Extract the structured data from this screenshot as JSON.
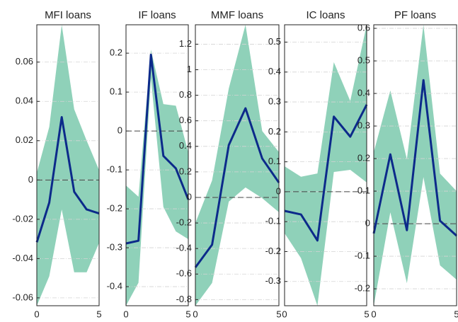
{
  "chart_data": [
    {
      "type": "band-line",
      "title": "MFI loans",
      "x": [
        0,
        1,
        2,
        3,
        4,
        5
      ],
      "values": [
        -0.0317,
        -0.0115,
        0.032,
        -0.006,
        -0.015,
        -0.017
      ],
      "upper": [
        0.0036,
        0.027,
        0.079,
        0.036,
        0.02,
        0.005
      ],
      "lower": [
        -0.064,
        -0.049,
        -0.015,
        -0.047,
        -0.047,
        -0.032
      ],
      "color": "#0c2a8a",
      "band_color": "#8fd1b9",
      "xlim": [
        0,
        5
      ],
      "xticks": [
        0,
        5
      ],
      "ylim": [
        -0.064,
        0.079
      ],
      "yticks": [
        -0.06,
        -0.04,
        -0.02,
        0,
        0.02,
        0.04,
        0.06
      ],
      "grid": true,
      "zero_line": true
    },
    {
      "type": "band-line",
      "title": "IF loans",
      "x": [
        0,
        1,
        2,
        3,
        4,
        5
      ],
      "values": [
        -0.289,
        -0.282,
        0.196,
        -0.064,
        -0.096,
        -0.176
      ],
      "upper": [
        -0.14,
        -0.169,
        0.209,
        0.069,
        0.065,
        -0.055
      ],
      "lower": [
        -0.449,
        -0.39,
        0.136,
        -0.195,
        -0.258,
        -0.278
      ],
      "color": "#0c2a8a",
      "band_color": "#8fd1b9",
      "xlim": [
        0,
        5
      ],
      "xticks": [
        0,
        5
      ],
      "ylim": [
        -0.449,
        0.273
      ],
      "yticks": [
        -0.4,
        -0.3,
        -0.2,
        -0.1,
        0,
        0.1,
        0.2
      ],
      "grid": true,
      "zero_line": true
    },
    {
      "type": "band-line",
      "title": "MMF loans",
      "x": [
        0,
        1,
        2,
        3,
        4,
        5
      ],
      "values": [
        -0.548,
        -0.37,
        0.41,
        0.698,
        0.305,
        0.116
      ],
      "upper": [
        -0.2,
        0.133,
        0.853,
        1.352,
        0.52,
        0.355
      ],
      "lower": [
        -0.848,
        -0.67,
        -0.033,
        0.078,
        -0.006,
        -0.116
      ],
      "color": "#0c2a8a",
      "band_color": "#8fd1b9",
      "xlim": [
        0,
        5
      ],
      "xticks": [
        0,
        5
      ],
      "ylim": [
        -0.848,
        1.352
      ],
      "yticks": [
        -0.8,
        -0.6,
        -0.4,
        -0.2,
        0,
        0.2,
        0.4,
        0.6,
        0.8,
        1,
        1.2
      ],
      "grid": true,
      "zero_line": true
    },
    {
      "type": "band-line",
      "title": "IC loans",
      "x": [
        0,
        1,
        2,
        3,
        4,
        5
      ],
      "values": [
        -0.064,
        -0.076,
        -0.163,
        0.251,
        0.184,
        0.291
      ],
      "upper": [
        0.085,
        0.05,
        0.061,
        0.433,
        0.303,
        0.558
      ],
      "lower": [
        -0.139,
        -0.222,
        -0.381,
        0.066,
        0.073,
        0.031
      ],
      "color": "#0c2a8a",
      "band_color": "#8fd1b9",
      "xlim": [
        0,
        5
      ],
      "xticks": [
        0,
        5
      ],
      "ylim": [
        -0.381,
        0.558
      ],
      "yticks": [
        -0.3,
        -0.2,
        -0.1,
        0,
        0.1,
        0.2,
        0.3,
        0.4,
        0.5
      ],
      "grid": true,
      "zero_line": true
    },
    {
      "type": "band-line",
      "title": "PF loans",
      "x": [
        0,
        1,
        2,
        3,
        4,
        5
      ],
      "values": [
        -0.03,
        0.213,
        -0.02,
        0.441,
        0.009,
        -0.037
      ],
      "upper": [
        0.22,
        0.409,
        0.198,
        0.611,
        0.154,
        0.1
      ],
      "lower": [
        -0.252,
        0.035,
        -0.183,
        0.143,
        -0.128,
        -0.172
      ],
      "color": "#0c2a8a",
      "band_color": "#8fd1b9",
      "xlim": [
        0,
        5
      ],
      "xticks": [
        0,
        5
      ],
      "ylim": [
        -0.252,
        0.611
      ],
      "yticks": [
        -0.2,
        -0.1,
        0,
        0.1,
        0.2,
        0.3,
        0.4,
        0.5,
        0.6
      ],
      "grid": true,
      "zero_line": true
    }
  ]
}
